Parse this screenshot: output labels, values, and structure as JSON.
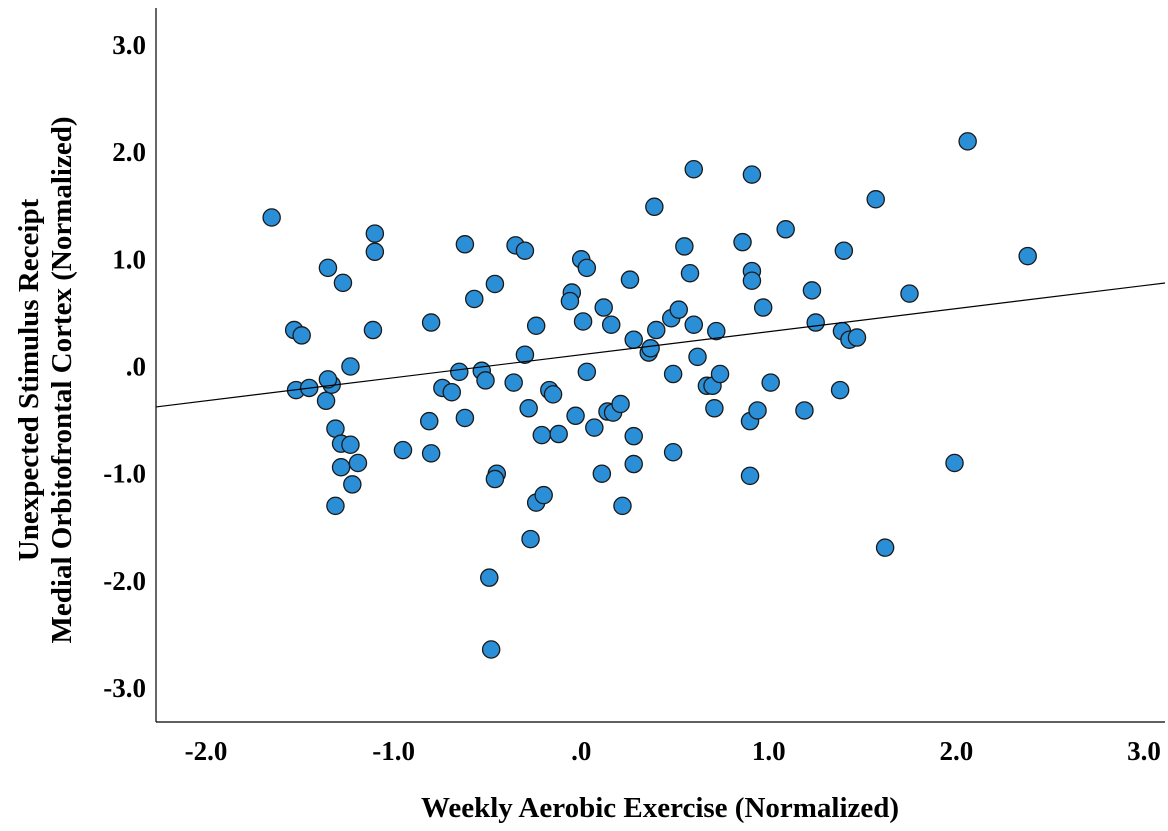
{
  "chart_data": {
    "type": "scatter",
    "xlabel": "Weekly Aerobic Exercise (Normalized)",
    "ylabel_lines": [
      "Unexpected Stimulus Receipt",
      "Medial Orbitofrontal Cortex (Normalized)"
    ],
    "xlim": [
      -2.3,
      3.2
    ],
    "ylim": [
      -3.3,
      3.2
    ],
    "x_ticks": [
      -2,
      -1,
      0,
      1,
      2,
      3
    ],
    "x_tick_labels": [
      "-2.0",
      "-1.0",
      ".0",
      "1.0",
      "2.0",
      "3.0"
    ],
    "y_ticks": [
      3,
      2,
      1,
      0,
      -1,
      -2,
      -3
    ],
    "y_tick_labels": [
      "3.0",
      "2.0",
      "1.0",
      ".0",
      "-1.0",
      "-2.0",
      "-3.0"
    ],
    "grid": false,
    "marker_color": "#2b8fd8",
    "fit_line": {
      "intercept": 0.11,
      "slope": 0.215
    },
    "points": [
      {
        "x": -1.65,
        "y": 1.39
      },
      {
        "x": -1.53,
        "y": 0.34
      },
      {
        "x": -1.49,
        "y": 0.29
      },
      {
        "x": -1.52,
        "y": -0.22
      },
      {
        "x": -1.45,
        "y": -0.2
      },
      {
        "x": -1.35,
        "y": 0.92
      },
      {
        "x": -1.27,
        "y": 0.78
      },
      {
        "x": -1.36,
        "y": -0.32
      },
      {
        "x": -1.33,
        "y": -0.17
      },
      {
        "x": -1.35,
        "y": -0.12
      },
      {
        "x": -1.31,
        "y": -0.58
      },
      {
        "x": -1.28,
        "y": -0.72
      },
      {
        "x": -1.23,
        "y": -0.73
      },
      {
        "x": -1.28,
        "y": -0.94
      },
      {
        "x": -1.19,
        "y": -0.9
      },
      {
        "x": -1.22,
        "y": -1.1
      },
      {
        "x": -1.31,
        "y": -1.3
      },
      {
        "x": -1.23,
        "y": 0.0
      },
      {
        "x": -1.1,
        "y": 1.24
      },
      {
        "x": -1.1,
        "y": 1.07
      },
      {
        "x": -1.11,
        "y": 0.34
      },
      {
        "x": -0.95,
        "y": -0.78
      },
      {
        "x": -0.8,
        "y": 0.41
      },
      {
        "x": -0.81,
        "y": -0.51
      },
      {
        "x": -0.8,
        "y": -0.81
      },
      {
        "x": -0.74,
        "y": -0.2
      },
      {
        "x": -0.69,
        "y": -0.24
      },
      {
        "x": -0.65,
        "y": -0.05
      },
      {
        "x": -0.62,
        "y": 1.14
      },
      {
        "x": -0.62,
        "y": -0.48
      },
      {
        "x": -0.57,
        "y": 0.63
      },
      {
        "x": -0.53,
        "y": -0.04
      },
      {
        "x": -0.51,
        "y": -0.13
      },
      {
        "x": -0.46,
        "y": 0.77
      },
      {
        "x": -0.45,
        "y": -1.0
      },
      {
        "x": -0.46,
        "y": -1.05
      },
      {
        "x": -0.49,
        "y": -1.97
      },
      {
        "x": -0.48,
        "y": -2.64
      },
      {
        "x": -0.35,
        "y": 1.13
      },
      {
        "x": -0.36,
        "y": -0.15
      },
      {
        "x": -0.3,
        "y": 1.08
      },
      {
        "x": -0.3,
        "y": 0.11
      },
      {
        "x": -0.28,
        "y": -0.39
      },
      {
        "x": -0.24,
        "y": 0.38
      },
      {
        "x": -0.27,
        "y": -1.61
      },
      {
        "x": -0.24,
        "y": -1.27
      },
      {
        "x": -0.2,
        "y": -1.2
      },
      {
        "x": -0.21,
        "y": -0.64
      },
      {
        "x": -0.17,
        "y": -0.22
      },
      {
        "x": -0.15,
        "y": -0.26
      },
      {
        "x": -0.12,
        "y": -0.63
      },
      {
        "x": -0.05,
        "y": 0.69
      },
      {
        "x": -0.06,
        "y": 0.61
      },
      {
        "x": -0.03,
        "y": -0.46
      },
      {
        "x": 0.0,
        "y": 1.0
      },
      {
        "x": 0.01,
        "y": 0.42
      },
      {
        "x": 0.03,
        "y": 0.92
      },
      {
        "x": 0.03,
        "y": -0.05
      },
      {
        "x": 0.07,
        "y": -0.57
      },
      {
        "x": 0.12,
        "y": 0.55
      },
      {
        "x": 0.11,
        "y": -1.0
      },
      {
        "x": 0.14,
        "y": -0.42
      },
      {
        "x": 0.17,
        "y": -0.43
      },
      {
        "x": 0.16,
        "y": 0.39
      },
      {
        "x": 0.21,
        "y": -0.35
      },
      {
        "x": 0.22,
        "y": -1.3
      },
      {
        "x": 0.26,
        "y": 0.81
      },
      {
        "x": 0.28,
        "y": 0.25
      },
      {
        "x": 0.28,
        "y": -0.65
      },
      {
        "x": 0.28,
        "y": -0.91
      },
      {
        "x": 0.36,
        "y": 0.13
      },
      {
        "x": 0.37,
        "y": 0.17
      },
      {
        "x": 0.39,
        "y": 1.49
      },
      {
        "x": 0.4,
        "y": 0.34
      },
      {
        "x": 0.48,
        "y": 0.45
      },
      {
        "x": 0.49,
        "y": -0.07
      },
      {
        "x": 0.49,
        "y": -0.8
      },
      {
        "x": 0.52,
        "y": 0.53
      },
      {
        "x": 0.55,
        "y": 1.12
      },
      {
        "x": 0.58,
        "y": 0.87
      },
      {
        "x": 0.6,
        "y": 1.84
      },
      {
        "x": 0.6,
        "y": 0.39
      },
      {
        "x": 0.62,
        "y": 0.09
      },
      {
        "x": 0.67,
        "y": -0.18
      },
      {
        "x": 0.7,
        "y": -0.18
      },
      {
        "x": 0.71,
        "y": -0.39
      },
      {
        "x": 0.72,
        "y": 0.33
      },
      {
        "x": 0.74,
        "y": -0.07
      },
      {
        "x": 0.86,
        "y": 1.16
      },
      {
        "x": 0.91,
        "y": 1.79
      },
      {
        "x": 0.91,
        "y": 0.89
      },
      {
        "x": 0.91,
        "y": 0.8
      },
      {
        "x": 0.9,
        "y": -0.51
      },
      {
        "x": 0.9,
        "y": -1.02
      },
      {
        "x": 0.94,
        "y": -0.41
      },
      {
        "x": 0.97,
        "y": 0.55
      },
      {
        "x": 1.01,
        "y": -0.15
      },
      {
        "x": 1.09,
        "y": 1.28
      },
      {
        "x": 1.19,
        "y": -0.41
      },
      {
        "x": 1.23,
        "y": 0.71
      },
      {
        "x": 1.25,
        "y": 0.41
      },
      {
        "x": 1.38,
        "y": -0.22
      },
      {
        "x": 1.39,
        "y": 0.33
      },
      {
        "x": 1.4,
        "y": 1.08
      },
      {
        "x": 1.43,
        "y": 0.25
      },
      {
        "x": 1.47,
        "y": 0.27
      },
      {
        "x": 1.57,
        "y": 1.56
      },
      {
        "x": 1.62,
        "y": -1.69
      },
      {
        "x": 1.75,
        "y": 0.68
      },
      {
        "x": 1.99,
        "y": -0.9
      },
      {
        "x": 2.06,
        "y": 2.1
      },
      {
        "x": 2.38,
        "y": 1.03
      }
    ]
  }
}
